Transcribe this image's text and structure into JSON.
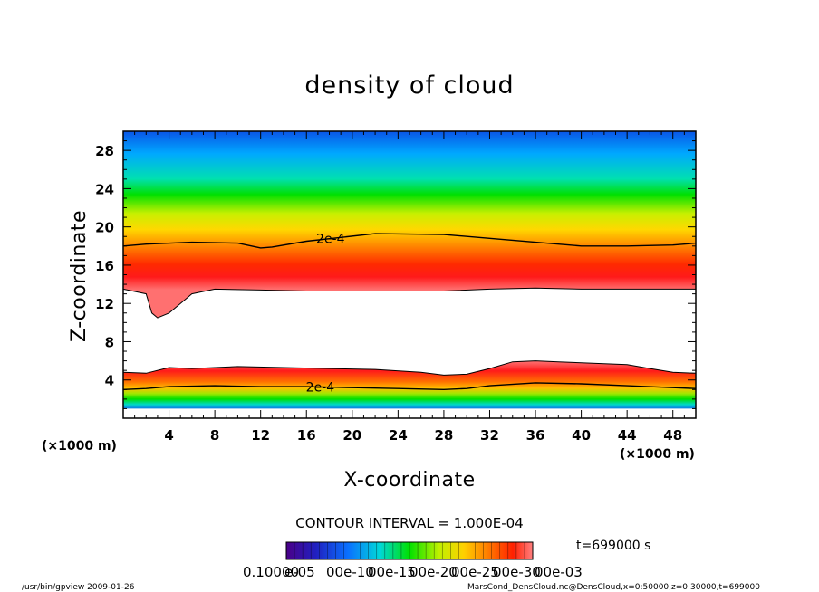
{
  "chart_data": {
    "type": "heatmap",
    "title": "density of cloud",
    "xlabel": "X-coordinate",
    "ylabel": "Z-coordinate",
    "x_unit": "(×1000 m)",
    "z_unit": "(×1000 m)",
    "xlim": [
      0,
      50
    ],
    "ylim": [
      0,
      30
    ],
    "x_ticks": [
      4,
      8,
      12,
      16,
      20,
      24,
      28,
      32,
      36,
      40,
      44,
      48
    ],
    "y_ticks": [
      4,
      8,
      12,
      16,
      20,
      24,
      28
    ],
    "contour_interval": "CONTOUR INTERVAL = 1.000E-04",
    "contour_label": "2e-4",
    "time_label": "t=699000 s",
    "colorbar_labels": [
      "0.10000",
      "e-05",
      "00e-10",
      "00e-15",
      "00e-20",
      "00e-25",
      "00e-30",
      "00e-03"
    ],
    "upper_layer": {
      "bottom_z": [
        [
          0,
          13.5
        ],
        [
          2,
          13.0
        ],
        [
          2.5,
          11.0
        ],
        [
          3,
          10.5
        ],
        [
          4,
          11.0
        ],
        [
          5,
          12.0
        ],
        [
          6,
          13.0
        ],
        [
          8,
          13.5
        ],
        [
          12,
          13.4
        ],
        [
          16,
          13.3
        ],
        [
          20,
          13.3
        ],
        [
          24,
          13.3
        ],
        [
          28,
          13.3
        ],
        [
          32,
          13.5
        ],
        [
          36,
          13.6
        ],
        [
          40,
          13.5
        ],
        [
          44,
          13.5
        ],
        [
          48,
          13.5
        ],
        [
          50,
          13.5
        ]
      ],
      "contour_2e4_z": [
        [
          0,
          18.0
        ],
        [
          2,
          18.2
        ],
        [
          6,
          18.4
        ],
        [
          10,
          18.3
        ],
        [
          12,
          17.8
        ],
        [
          13,
          17.9
        ],
        [
          16,
          18.5
        ],
        [
          22,
          19.3
        ],
        [
          28,
          19.2
        ],
        [
          32,
          18.8
        ],
        [
          36,
          18.4
        ],
        [
          40,
          18.0
        ],
        [
          44,
          18.0
        ],
        [
          48,
          18.1
        ],
        [
          50,
          18.3
        ]
      ]
    },
    "lower_layer": {
      "top_z": [
        [
          0,
          4.8
        ],
        [
          2,
          4.7
        ],
        [
          4,
          5.3
        ],
        [
          6,
          5.2
        ],
        [
          8,
          5.3
        ],
        [
          10,
          5.4
        ],
        [
          14,
          5.3
        ],
        [
          18,
          5.2
        ],
        [
          22,
          5.1
        ],
        [
          26,
          4.8
        ],
        [
          28,
          4.5
        ],
        [
          30,
          4.6
        ],
        [
          32,
          5.2
        ],
        [
          34,
          5.9
        ],
        [
          36,
          6.0
        ],
        [
          38,
          5.9
        ],
        [
          40,
          5.8
        ],
        [
          44,
          5.6
        ],
        [
          46,
          5.2
        ],
        [
          48,
          4.8
        ],
        [
          50,
          4.7
        ]
      ],
      "contour_2e4_z": [
        [
          0,
          3.0
        ],
        [
          2,
          3.1
        ],
        [
          4,
          3.3
        ],
        [
          8,
          3.4
        ],
        [
          12,
          3.3
        ],
        [
          16,
          3.3
        ],
        [
          20,
          3.2
        ],
        [
          24,
          3.1
        ],
        [
          28,
          3.0
        ],
        [
          30,
          3.1
        ],
        [
          32,
          3.4
        ],
        [
          36,
          3.7
        ],
        [
          40,
          3.6
        ],
        [
          44,
          3.4
        ],
        [
          48,
          3.2
        ],
        [
          50,
          3.1
        ]
      ],
      "base_z": 1.0
    },
    "colors": {
      "max": "#ff0000",
      "high": "#ff8a00",
      "mid_high": "#ffd800",
      "mid": "#00e600",
      "mid_low": "#00ccd8",
      "low": "#0a55e6",
      "min": "#ffffff",
      "deep_purple": "#3a0080"
    }
  },
  "footer": {
    "program": "/usr/bin/gpview  2009-01-26",
    "source": "MarsCond_DensCloud.nc@DensCloud,x=0:50000,z=0:30000,t=699000"
  }
}
